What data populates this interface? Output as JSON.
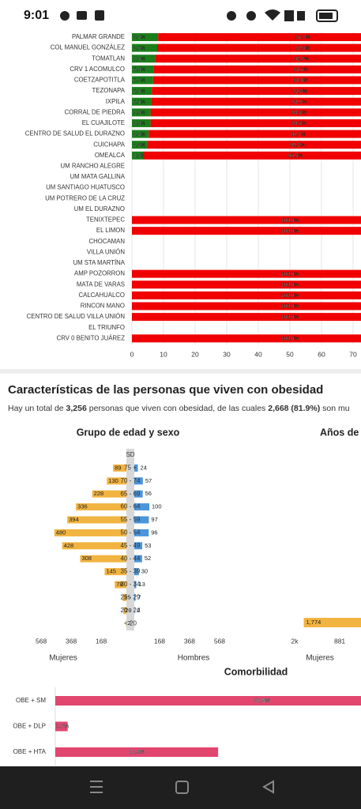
{
  "status_bar": {
    "time": "9:01"
  },
  "chart_data": [
    {
      "type": "stacked-hbar",
      "categories": [
        "PALMAR GRANDE",
        "COL MANUEL GONZÁLEZ",
        "TOMATLAN",
        "CRV 1 ACOMULCO",
        "COETZAPOTITLA",
        "TEZONAPA",
        "IXPILA",
        "CORRAL DE PIEDRA",
        "EL CUAJILOTE",
        "CENTRO DE SALUD EL DURAZNO",
        "CUICHAPA",
        "OMEALCA",
        "UM RANCHO ALEGRE",
        "UM MATA GALLINA",
        "UM SANTIAGO HUATUSCO",
        "UM POTRERO DE LA CRUZ",
        "UM EL DURAZNO",
        "TENIXTEPEC",
        "EL LIMON",
        "CHOCAMAN",
        "VILLA UNIÓN",
        "UM STA MARTÍNA",
        "AMP POZORRON",
        "MATA DE VARAS",
        "CALCAHUALCO",
        "RINCON MANO",
        "CENTRO DE SALUD VILLA UNIÓN",
        "EL TRIUNFO",
        "CRV 0 BENITO JUÁREZ"
      ],
      "series": [
        {
          "color": "#1a7f1a",
          "values": [
            8.3,
            8.0,
            7.3,
            6.9,
            6.7,
            6.3,
            6.1,
            5.9,
            5.9,
            5.3,
            4.8,
            3.5,
            null,
            null,
            null,
            null,
            null,
            0.0,
            0.0,
            null,
            null,
            null,
            0.0,
            0.0,
            0.0,
            0.0,
            0.0,
            null,
            0.0
          ],
          "value_labels": [
            "8.3%",
            "8.0%",
            "7.3%",
            "6.9%",
            "6.7%",
            "6.3%",
            "6.1%",
            "5.9%",
            "5.9%",
            "5.3%",
            "4.8%",
            "3.5%",
            null,
            null,
            null,
            null,
            null,
            "0.0%",
            "0.0%",
            null,
            null,
            null,
            "0.0%",
            "0.0%",
            "0.0%",
            "0.0%",
            "0.0%",
            null,
            "0.0%"
          ]
        },
        {
          "color": "#f00000",
          "values": [
            91.7,
            92.0,
            92.7,
            93.1,
            93.3,
            93.8,
            93.9,
            94.1,
            94.1,
            94.7,
            95.2,
            96.5,
            null,
            null,
            null,
            null,
            null,
            100.0,
            100.0,
            null,
            null,
            null,
            100.0,
            100.0,
            100.0,
            100.0,
            100.0,
            null,
            100.0
          ],
          "value_labels": [
            "91.7%",
            "92.0%",
            "92.7%",
            "93.1%",
            "93.3%",
            "93.8%",
            "93.9%",
            "94.1%",
            "94.1%",
            "94.7%",
            "95.2%",
            "96.5%",
            null,
            null,
            null,
            null,
            null,
            "100.0%",
            "100.0%",
            null,
            null,
            null,
            "100.0%",
            "100.0%",
            "100.0%",
            "100.0%",
            "100.0%",
            null,
            "100.0%"
          ]
        }
      ],
      "xlim": [
        0,
        100
      ],
      "xticks": [
        0,
        10,
        20,
        30,
        40,
        50,
        60,
        70
      ],
      "grid": true
    },
    {
      "type": "pyramid",
      "title": "Grupo de edad y sexo",
      "categories": [
        "SD",
        "75 +",
        "70 - 74",
        "65 - 69",
        "60 - 64",
        "55 - 59",
        "50 - 54",
        "45 - 49",
        "40 - 44",
        "35 - 39",
        "30 - 34",
        "25 - 29",
        "20 - 24",
        "< 20"
      ],
      "series": [
        {
          "name": "Mujeres",
          "color": "#f2b440",
          "values": [
            null,
            89,
            130,
            228,
            336,
            394,
            480,
            428,
            308,
            145,
            78,
            25,
            20,
            2
          ]
        },
        {
          "name": "Hombres",
          "color": "#4a95dc",
          "values": [
            null,
            24,
            57,
            56,
            100,
            97,
            96,
            53,
            52,
            30,
            13,
            7,
            2,
            null
          ]
        }
      ],
      "xlim": [
        0,
        600
      ],
      "xticks": [
        168,
        368,
        568
      ]
    },
    {
      "type": "reversed-hbar",
      "title": "Años de",
      "xlabel": "Mujeres",
      "color": "#f2b440",
      "values": [
        1774
      ],
      "value_labels": [
        "1,774"
      ],
      "xlim": [
        0,
        2000
      ],
      "xticks": [
        {
          "value": 2000,
          "label": "2k"
        },
        881
      ]
    },
    {
      "type": "hbar",
      "title": "Comorbilidad",
      "color": "#e2466f",
      "categories": [
        "OBE + SM",
        "OBE + DLP",
        "OBE + HTA"
      ],
      "values": [
        56.9,
        1.7,
        22.4
      ],
      "value_labels": [
        "56.9%",
        "1.7%",
        "22.4%"
      ],
      "xlim": [
        0,
        60
      ]
    }
  ],
  "section": {
    "title": "Características de las personas que viven con obesidad",
    "summary": [
      "Hay un total de ",
      "3,256",
      " personas que viven con obesidad, de las cuales ",
      "2,668 (81.9%)",
      " son mu"
    ]
  }
}
